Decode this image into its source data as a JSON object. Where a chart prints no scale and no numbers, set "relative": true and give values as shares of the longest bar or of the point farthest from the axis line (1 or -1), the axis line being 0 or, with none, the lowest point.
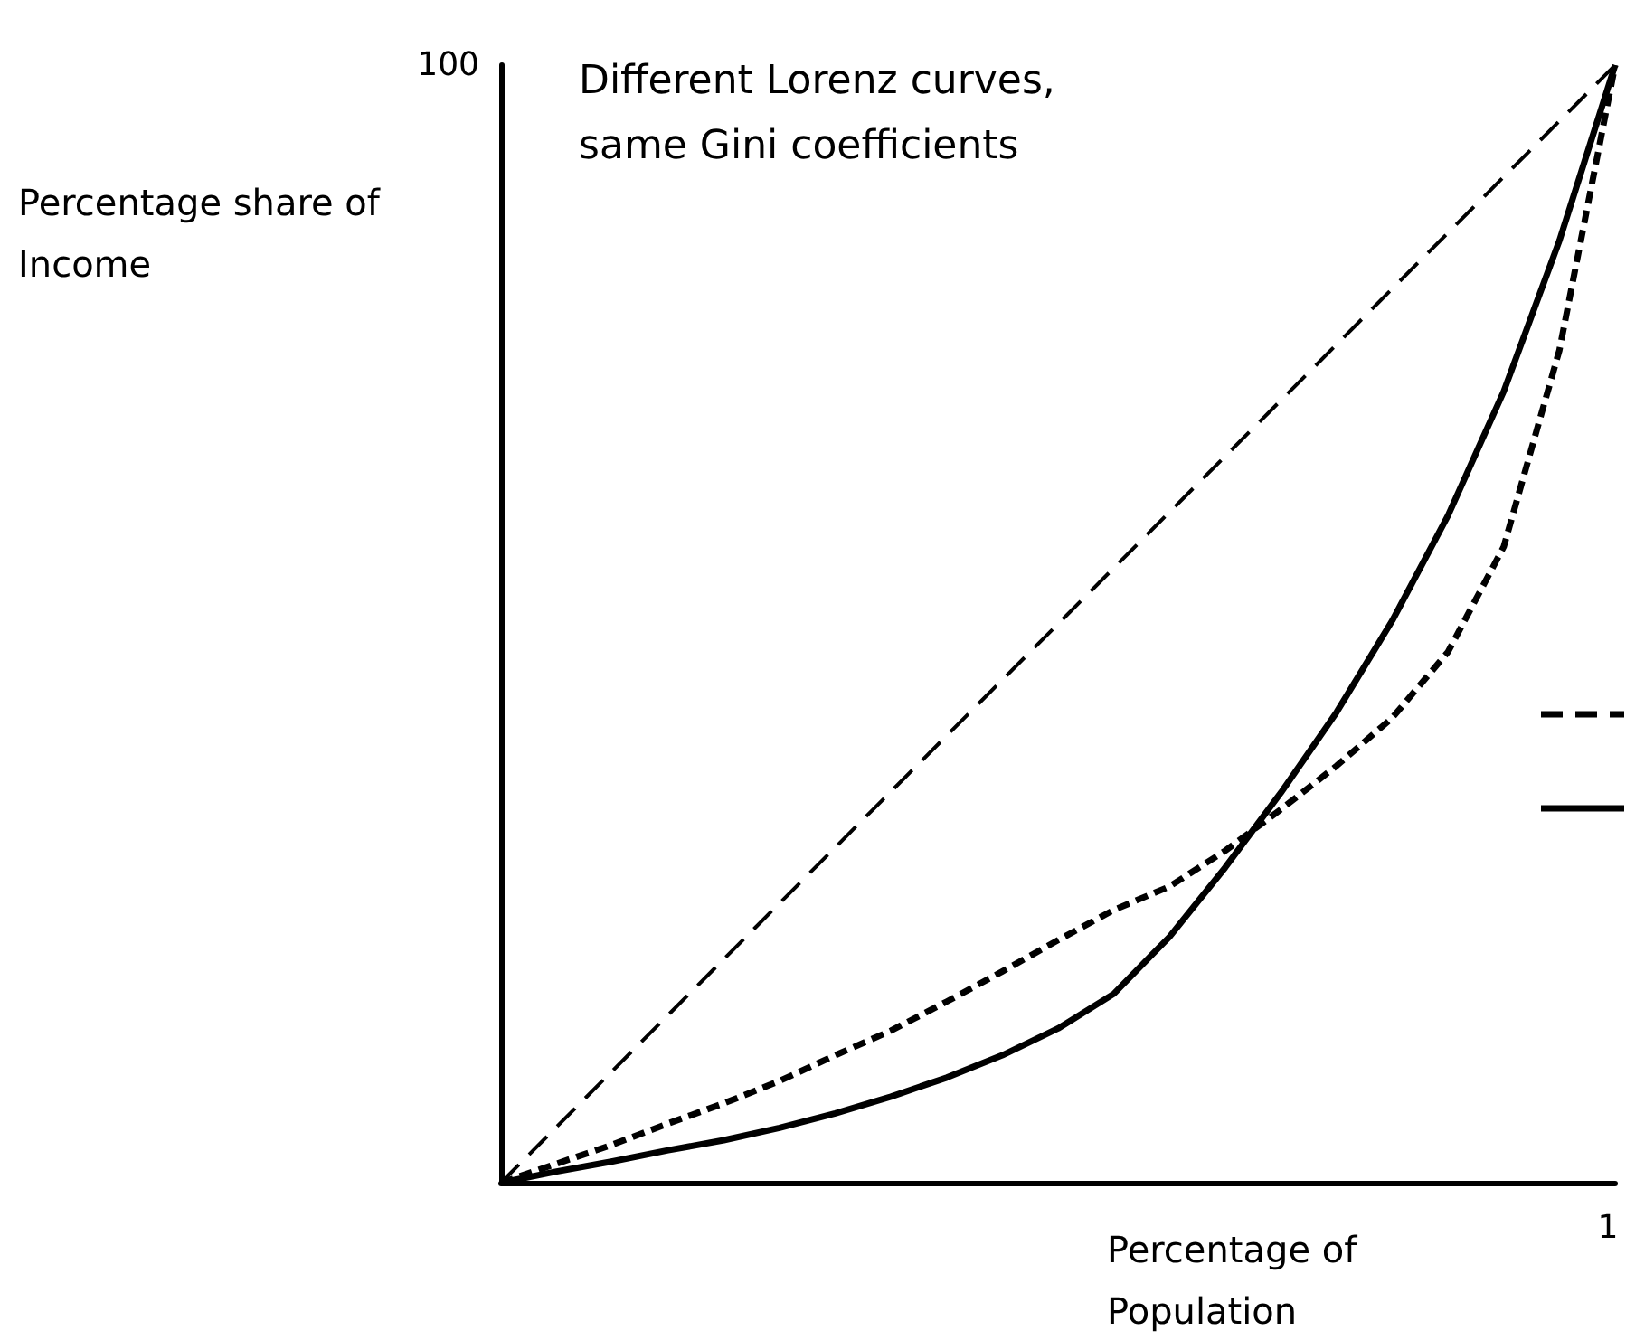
{
  "chart_data": {
    "type": "line",
    "title": "Different Lorenz curves,\nsame Gini coefficients",
    "xlabel": "Percentage of\nPopulation",
    "ylabel": "Percentage share of\nIncome",
    "relative": true,
    "annotations": [
      "100",
      "1"
    ],
    "grid": false,
    "marker": "none",
    "categories": [
      null,
      null,
      null,
      null,
      null,
      null,
      null,
      null,
      null,
      null,
      null,
      null,
      null,
      null,
      null,
      null,
      null,
      null,
      null,
      null,
      null
    ],
    "series": [
      {
        "color": "#000000",
        "line_style": "dashed",
        "values": [
          0,
          0.05,
          0.1,
          0.15,
          0.2,
          0.25,
          0.3,
          0.35,
          0.4,
          0.45,
          0.5,
          0.55,
          0.6,
          0.65,
          0.7,
          0.75,
          0.8,
          0.85,
          0.9,
          0.95,
          1
        ]
      },
      {
        "color": "#000000",
        "line_style": "dotted",
        "values": [
          0,
          0.017,
          0.034,
          0.053,
          0.071,
          0.091,
          0.114,
          0.136,
          0.162,
          0.189,
          0.217,
          0.244,
          0.265,
          0.297,
          0.334,
          0.373,
          0.416,
          0.475,
          0.569,
          0.745,
          1
        ]
      },
      {
        "color": "#000000",
        "line_style": "solid",
        "values": [
          0,
          0.01,
          0.019,
          0.029,
          0.038,
          0.049,
          0.062,
          0.077,
          0.094,
          0.114,
          0.138,
          0.169,
          0.22,
          0.282,
          0.349,
          0.421,
          0.503,
          0.597,
          0.708,
          0.843,
          1
        ]
      }
    ]
  }
}
